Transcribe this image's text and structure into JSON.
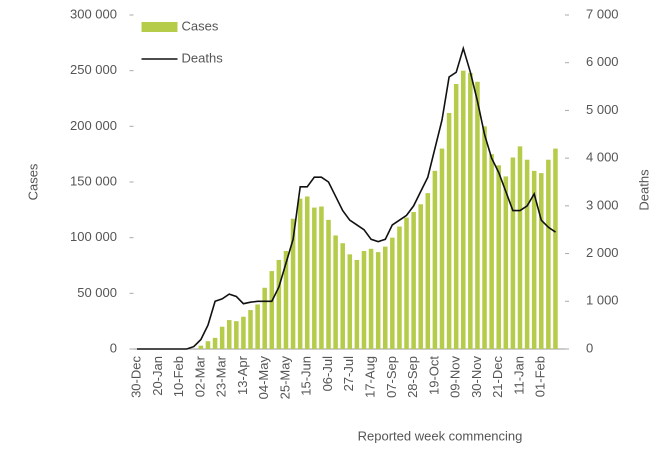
{
  "chart_data": {
    "type": "bar_line",
    "xlabel": "Reported week commencing",
    "ylabel": "Cases",
    "y2label": "Deaths",
    "categories": [
      "30-Dec",
      null,
      null,
      "20-Jan",
      null,
      null,
      "10-Feb",
      null,
      null,
      "02-Mar",
      null,
      null,
      "23-Mar",
      null,
      null,
      "13-Apr",
      null,
      null,
      "04-May",
      null,
      null,
      "25-May",
      null,
      null,
      "15-Jun",
      null,
      null,
      "06-Jul",
      null,
      null,
      "27-Jul",
      null,
      null,
      "17-Aug",
      null,
      null,
      "07-Sep",
      null,
      null,
      "28-Sep",
      null,
      null,
      "19-Oct",
      null,
      null,
      "09-Nov",
      null,
      null,
      "30-Nov",
      null,
      null,
      "21-Dec",
      null,
      null,
      "11-Jan",
      null,
      null,
      "01-Feb",
      null,
      null
    ],
    "series": [
      {
        "name": "Cases",
        "color": "#b5cc4a",
        "kind": "bar",
        "values": [
          0,
          0,
          0,
          0,
          0,
          0,
          0,
          0,
          0,
          3000,
          7000,
          10000,
          20000,
          26000,
          25000,
          29000,
          35000,
          40000,
          55000,
          70000,
          80000,
          88000,
          117000,
          135000,
          137000,
          127000,
          128000,
          116000,
          102000,
          95000,
          85000,
          80000,
          88000,
          90000,
          87000,
          92000,
          100000,
          110000,
          118000,
          123000,
          130000,
          140000,
          160000,
          180000,
          212000,
          238000,
          250000,
          248000,
          240000,
          200000,
          175000,
          165000,
          155000,
          172000,
          182000,
          170000,
          160000,
          158000,
          170000,
          180000
        ]
      },
      {
        "name": "Deaths",
        "color": "#111111",
        "kind": "line",
        "axis": "y2",
        "values": [
          0,
          0,
          0,
          0,
          0,
          0,
          0,
          0,
          50,
          200,
          500,
          1000,
          1050,
          1150,
          1100,
          950,
          980,
          1000,
          1000,
          1000,
          1300,
          1800,
          2300,
          3400,
          3400,
          3600,
          3600,
          3500,
          3200,
          2900,
          2700,
          2600,
          2500,
          2300,
          2250,
          2300,
          2600,
          2700,
          2800,
          3000,
          3300,
          3600,
          4200,
          4800,
          5700,
          5800,
          6300,
          5800,
          5200,
          4500,
          4000,
          3700,
          3300,
          2900,
          2900,
          3000,
          3250,
          2700,
          2550,
          2450
        ]
      }
    ],
    "ylim": [
      0,
      300000
    ],
    "yticks": [
      0,
      {
        "value": 50000,
        "label": "50 000"
      },
      {
        "value": 100000,
        "label": "100 000"
      },
      {
        "value": 150000,
        "label": "150 000"
      },
      {
        "value": 200000,
        "label": "200 000"
      },
      {
        "value": 250000,
        "label": "250 000"
      },
      {
        "value": 300000,
        "label": "300 000"
      }
    ],
    "y2lim": [
      0,
      7000
    ],
    "y2ticks": [
      0,
      {
        "value": 1000,
        "label": "1 000"
      },
      {
        "value": 2000,
        "label": "2 000"
      },
      {
        "value": 3000,
        "label": "3 000"
      },
      {
        "value": 4000,
        "label": "4 000"
      },
      {
        "value": 5000,
        "label": "5 000"
      },
      {
        "value": 6000,
        "label": "6 000"
      },
      {
        "value": 7000,
        "label": "7 000"
      }
    ],
    "legend": "top-left"
  }
}
